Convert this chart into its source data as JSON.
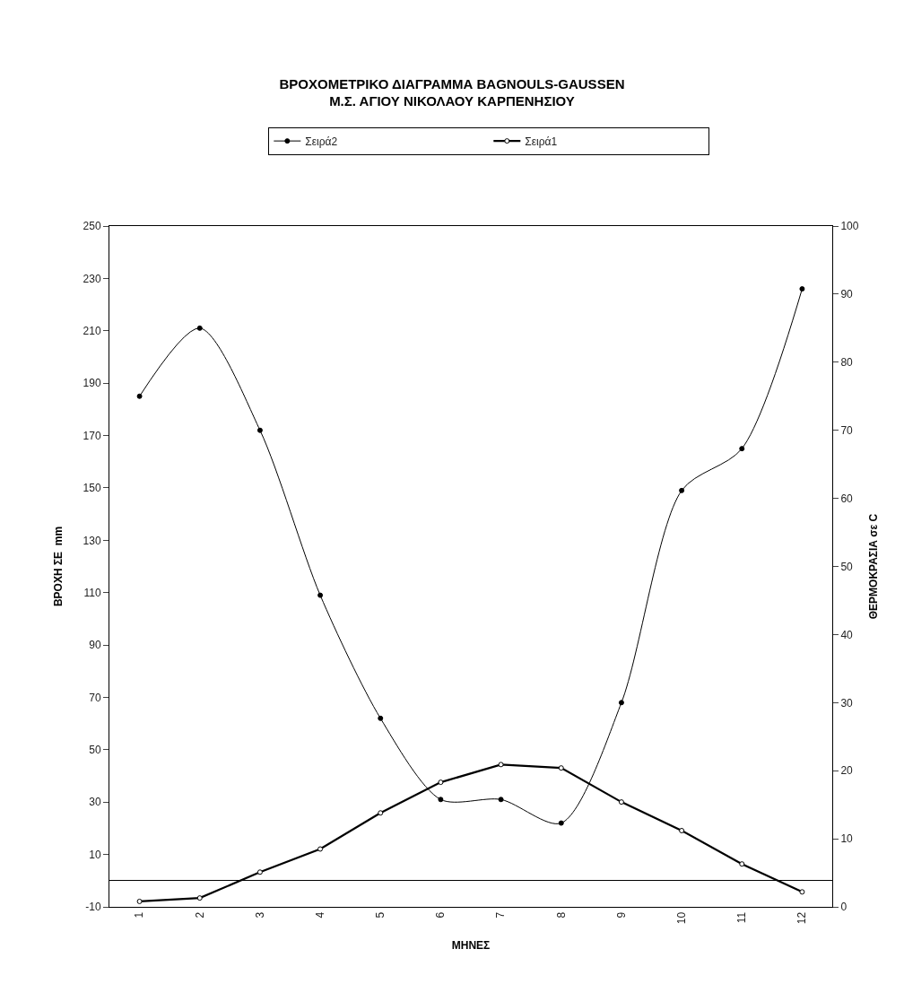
{
  "chart_data": {
    "type": "line",
    "title": "ΒΡΟΧΟΜΕΤΡΙΚΟ ΔΙΑΓΡΑΜΜΑ BAGNOULS-GAUSSEN\nΜ.Σ. ΑΓΙΟΥ ΝΙΚΟΛΑΟΥ ΚΑΡΠΕΝΗΣΙΟΥ",
    "xlabel": "ΜΗΝΕΣ",
    "ylabel": "ΒΡΟΧΗ ΣΕ  mm",
    "y2label": "ΘΕΡΜΟΚΡΑΣΙΑ σε C",
    "categories": [
      "1",
      "2",
      "3",
      "4",
      "5",
      "6",
      "7",
      "8",
      "9",
      "10",
      "11",
      "12"
    ],
    "series": [
      {
        "name": "Σειρά2",
        "color": "#000000",
        "values": [
          185,
          211,
          172,
          109,
          62,
          31,
          31,
          22,
          68,
          149,
          165,
          226
        ]
      },
      {
        "name": "Σειρά1",
        "color": "#000000",
        "axis": "y2",
        "values": [
          0.8,
          1.3,
          5.1,
          8.5,
          13.8,
          18.3,
          20.9,
          20.4,
          15.4,
          11.2,
          6.3,
          2.2
        ]
      }
    ],
    "ylim": [
      -10,
      250
    ],
    "yticks": [
      -10,
      10,
      30,
      50,
      70,
      90,
      110,
      130,
      150,
      170,
      190,
      210,
      230,
      250
    ],
    "y2lim": [
      0,
      100
    ],
    "y2ticks": [
      0,
      10,
      20,
      30,
      40,
      50,
      60,
      70,
      80,
      90,
      100
    ],
    "grid": false,
    "legend": "top",
    "marker": "circle",
    "line_style": "solid"
  }
}
